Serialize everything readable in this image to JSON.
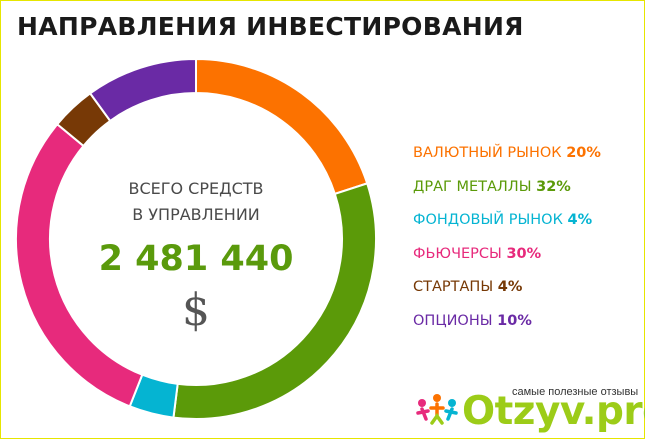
{
  "title": "НАПРАВЛЕНИЯ ИНВЕСТИРОВАНИЯ",
  "center": {
    "line1": "ВСЕГО СРЕДСТВ",
    "line2": "В УПРАВЛЕНИИ",
    "total": "2 481 440",
    "currency": "$"
  },
  "chart_data": {
    "type": "pie",
    "style": "donut",
    "slices": [
      {
        "label": "ВАЛЮТНЫЙ РЫНОК",
        "pct_label": "20%",
        "value": 20,
        "color": "#fc7200"
      },
      {
        "label": "ДРАГ МЕТАЛЛЫ",
        "pct_label": "32%",
        "value": 32,
        "color": "#5b9a09"
      },
      {
        "label": "ФОНДОВЫЙ РЫНОК",
        "pct_label": "4%",
        "value": 4,
        "color": "#05b4d2"
      },
      {
        "label": "ФЬЮЧЕРСЫ",
        "pct_label": "30%",
        "value": 30,
        "color": "#e72a7c"
      },
      {
        "label": "СТАРТАПЫ",
        "pct_label": "4%",
        "value": 4,
        "color": "#773906"
      },
      {
        "label": "ОПЦИОНЫ",
        "pct_label": "10%",
        "value": 10,
        "color": "#6a2aa5"
      }
    ],
    "legend_position": "right"
  },
  "watermark": {
    "tagline": "самые полезные отзывы",
    "logo": "Otzyv.pro",
    "logo_colors": [
      "#e72a7c",
      "#9ccc18",
      "#05b4d2",
      "#fc7200"
    ]
  }
}
